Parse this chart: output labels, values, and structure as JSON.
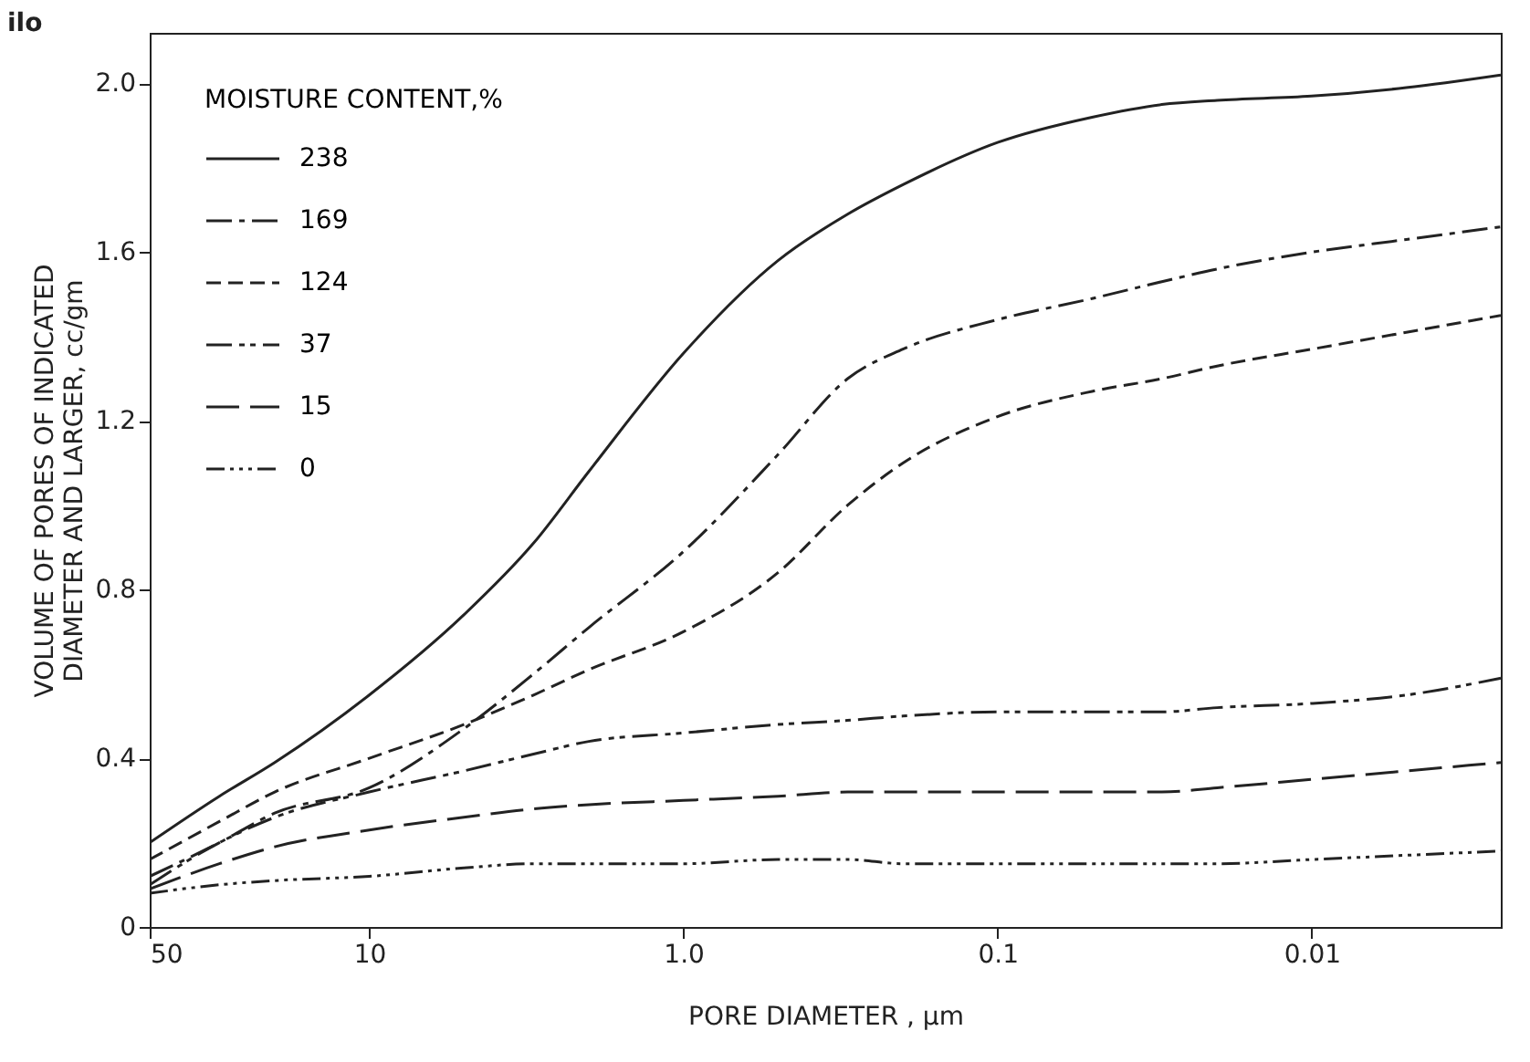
{
  "chart_data": {
    "type": "line",
    "xlabel": "PORE  DIAMETER ,  µm",
    "ylabel": "VOLUME  OF  PORES  OF  INDICATED\nDIAMETER  AND  LARGER,  cc/gm",
    "legend_title": "MOISTURE  CONTENT,%",
    "annotations": [
      "ilo"
    ],
    "x": [
      50,
      30,
      20,
      10,
      5,
      3,
      2,
      1,
      0.5,
      0.3,
      0.2,
      0.1,
      0.05,
      0.03,
      0.02,
      0.01,
      0.005,
      0.0025
    ],
    "series": [
      {
        "name": "238",
        "color": "#222222",
        "line_style": "solid",
        "values": [
          0.2,
          0.31,
          0.39,
          0.55,
          0.74,
          0.91,
          1.08,
          1.36,
          1.58,
          1.69,
          1.76,
          1.86,
          1.92,
          1.95,
          1.96,
          1.97,
          1.99,
          2.02
        ]
      },
      {
        "name": "169",
        "color": "#222222",
        "line_style": "dashed",
        "values": [
          0.12,
          0.2,
          0.27,
          0.33,
          0.47,
          0.6,
          0.71,
          0.89,
          1.12,
          1.3,
          1.37,
          1.44,
          1.49,
          1.53,
          1.56,
          1.6,
          1.63,
          1.66
        ]
      },
      {
        "name": "124",
        "color": "#222222",
        "line_style": "dashed",
        "values": [
          0.16,
          0.25,
          0.32,
          0.4,
          0.48,
          0.55,
          0.61,
          0.7,
          0.84,
          1.0,
          1.1,
          1.21,
          1.27,
          1.3,
          1.33,
          1.37,
          1.41,
          1.45
        ]
      },
      {
        "name": "37",
        "color": "#222222",
        "line_style": "dashed",
        "values": [
          0.1,
          0.2,
          0.26,
          0.32,
          0.37,
          0.41,
          0.44,
          0.46,
          0.48,
          0.49,
          0.5,
          0.51,
          0.51,
          0.51,
          0.52,
          0.53,
          0.55,
          0.59
        ]
      },
      {
        "name": "15",
        "color": "#222222",
        "line_style": "dashed",
        "values": [
          0.09,
          0.15,
          0.19,
          0.23,
          0.26,
          0.28,
          0.29,
          0.3,
          0.31,
          0.32,
          0.32,
          0.32,
          0.32,
          0.32,
          0.33,
          0.35,
          0.37,
          0.39
        ]
      },
      {
        "name": "0",
        "color": "#222222",
        "line_style": "dotted",
        "values": [
          0.08,
          0.1,
          0.11,
          0.12,
          0.14,
          0.15,
          0.15,
          0.15,
          0.16,
          0.16,
          0.15,
          0.15,
          0.15,
          0.15,
          0.15,
          0.16,
          0.17,
          0.18
        ]
      }
    ],
    "log": "x",
    "xlim": [
      50,
      0.0025
    ],
    "xticks": [
      50,
      10,
      {
        "value": 1,
        "label": "1.0"
      },
      0.1,
      0.01
    ],
    "ylim": [
      0,
      2.12
    ],
    "yticks": [
      0,
      0.4,
      0.8,
      1.2,
      1.6,
      {
        "value": 2,
        "label": "2.0"
      }
    ],
    "grid": false,
    "legend": "top left"
  }
}
